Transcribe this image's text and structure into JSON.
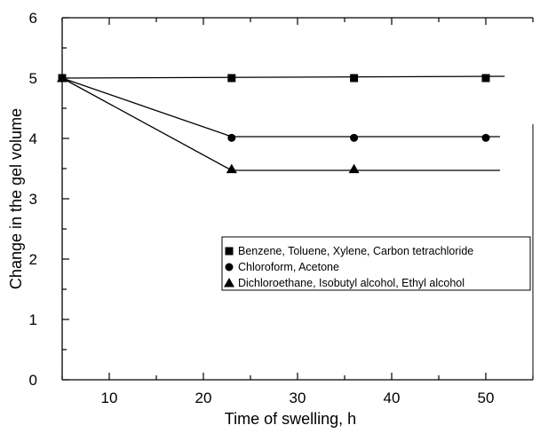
{
  "chart_data": {
    "type": "line",
    "xlabel": "Time of swelling, h",
    "ylabel": "Change in the gel volume",
    "xlim": [
      5,
      55
    ],
    "ylim": [
      0,
      6
    ],
    "x_ticks": [
      10,
      20,
      30,
      40,
      50
    ],
    "y_ticks": [
      0,
      1,
      2,
      3,
      4,
      5,
      6
    ],
    "legend_placement": "center-right",
    "grid": false,
    "series": [
      {
        "name": "Benzene, Toluene, Xylene, Carbon tetrachloride",
        "marker": "square",
        "points": [
          [
            5,
            5.0
          ],
          [
            23,
            5.0
          ],
          [
            36,
            5.0
          ],
          [
            50,
            5.0
          ]
        ],
        "line": [
          [
            5,
            5.0
          ],
          [
            52,
            5.03
          ]
        ]
      },
      {
        "name": "Chloroform, Acetone",
        "marker": "circle",
        "points": [
          [
            5,
            5.0
          ],
          [
            23,
            4.01
          ],
          [
            36,
            4.01
          ],
          [
            50,
            4.01
          ]
        ],
        "line": [
          [
            5,
            5.0
          ],
          [
            23,
            4.03
          ],
          [
            51.5,
            4.03
          ]
        ]
      },
      {
        "name": "Dichloroethane, Isobutyl alcohol, Ethyl alcohol",
        "marker": "triangle",
        "points": [
          [
            5,
            5.0
          ],
          [
            23,
            3.49
          ],
          [
            36,
            3.49
          ]
        ],
        "line": [
          [
            5,
            5.0
          ],
          [
            23,
            3.47
          ],
          [
            51.5,
            3.47
          ]
        ]
      }
    ]
  }
}
